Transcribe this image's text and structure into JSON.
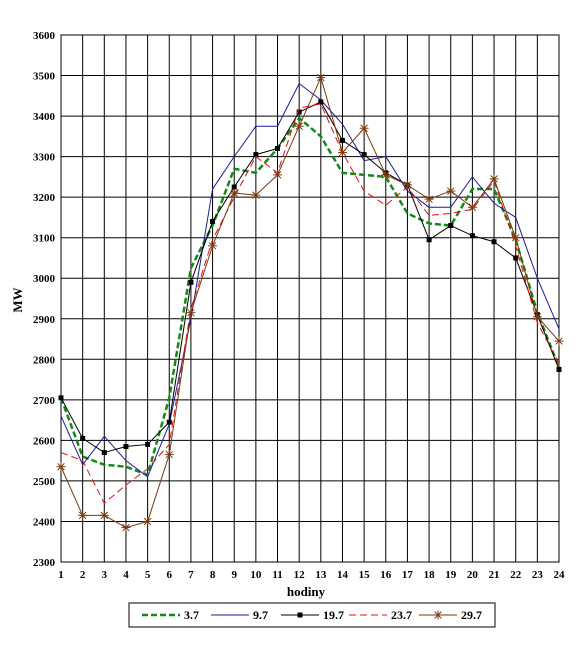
{
  "chart_data": {
    "type": "line",
    "title": "",
    "xlabel": "hodiny",
    "ylabel": "MW",
    "x": [
      1,
      2,
      3,
      4,
      5,
      6,
      7,
      8,
      9,
      10,
      11,
      12,
      13,
      14,
      15,
      16,
      17,
      18,
      19,
      20,
      21,
      22,
      23,
      24
    ],
    "xlim": [
      1,
      24
    ],
    "ylim": [
      2300,
      3600
    ],
    "yticks": [
      2300,
      2400,
      2500,
      2600,
      2700,
      2800,
      2900,
      3000,
      3100,
      3200,
      3300,
      3400,
      3500,
      3600
    ],
    "grid": true,
    "legend_position": "bottom",
    "series": [
      {
        "name": "3.7",
        "color": "#138a13",
        "style": "dashed-thick",
        "marker": "none",
        "values": [
          2705,
          2560,
          2540,
          2535,
          2515,
          2705,
          3025,
          3130,
          3270,
          3260,
          3320,
          3395,
          3350,
          3260,
          3255,
          3250,
          3160,
          3135,
          3130,
          3220,
          3220,
          3095,
          2915,
          2780
        ]
      },
      {
        "name": "9.7",
        "color": "#1c1c9c",
        "style": "solid",
        "marker": "none",
        "values": [
          2660,
          2540,
          2610,
          2550,
          2510,
          2640,
          2900,
          3220,
          3300,
          3375,
          3375,
          3480,
          3440,
          3380,
          3290,
          3300,
          3215,
          3175,
          3175,
          3250,
          3185,
          3150,
          3000,
          2875
        ]
      },
      {
        "name": "19.7",
        "color": "#000000",
        "style": "solid",
        "marker": "square",
        "values": [
          2705,
          2605,
          2570,
          2585,
          2590,
          2645,
          2990,
          3140,
          3225,
          3305,
          3320,
          3410,
          3435,
          3340,
          3305,
          3260,
          3230,
          3095,
          3130,
          3105,
          3090,
          3050,
          2910,
          2775
        ]
      },
      {
        "name": "23.7",
        "color": "#e01010",
        "style": "dashed",
        "marker": "none",
        "values": [
          2570,
          2550,
          2445,
          2490,
          2530,
          2590,
          2925,
          3095,
          3200,
          3300,
          3260,
          3420,
          3430,
          3310,
          3215,
          3180,
          3225,
          3155,
          3160,
          3170,
          3240,
          3080,
          2890,
          2790
        ]
      },
      {
        "name": "29.7",
        "color": "#7a3a10",
        "style": "solid",
        "marker": "star",
        "values": [
          2535,
          2415,
          2415,
          2385,
          2400,
          2565,
          2915,
          3080,
          3210,
          3205,
          3255,
          3375,
          3495,
          3310,
          3370,
          3255,
          3230,
          3195,
          3215,
          3175,
          3245,
          3100,
          2905,
          2845
        ]
      }
    ]
  }
}
